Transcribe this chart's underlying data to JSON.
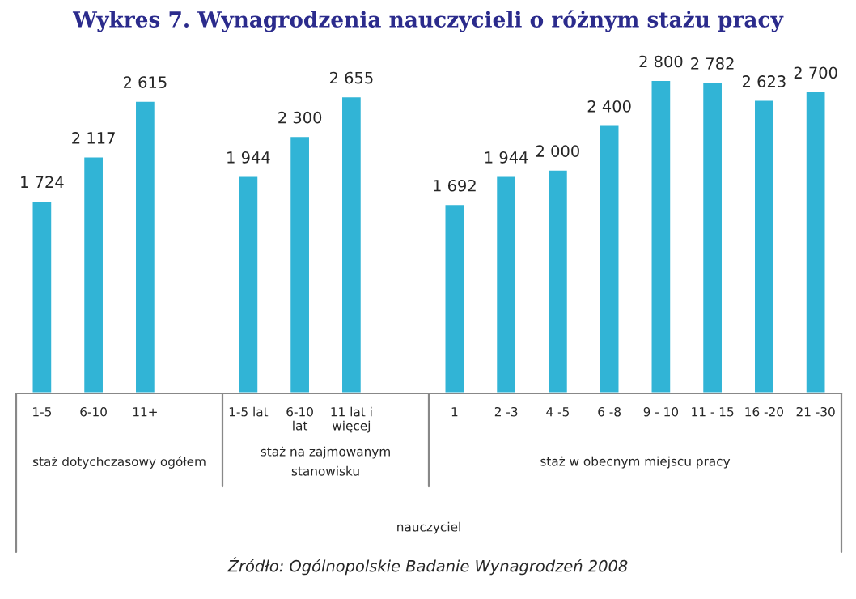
{
  "chart_data": {
    "type": "bar",
    "title": "Wykres 7. Wynagrodzenia nauczycieli o różnym stażu pracy",
    "categories": [
      "1-5",
      "6-10",
      "11+",
      null,
      "1-5 lat",
      "6-10 lat",
      "11 lat i więcej",
      null,
      "1",
      "2 -3",
      "4 -5",
      "6 -8",
      "9 - 10",
      "11 - 15",
      "16 -20",
      "21 -30"
    ],
    "values": [
      1724,
      2117,
      2615,
      null,
      1944,
      2300,
      2655,
      null,
      1692,
      1944,
      2000,
      2400,
      2800,
      2782,
      2623,
      2700
    ],
    "value_labels": [
      "1 724",
      "2 117",
      "2 615",
      null,
      "1 944",
      "2 300",
      "2 655",
      null,
      "1 692",
      "1 944",
      "2 000",
      "2 400",
      "2 800",
      "2 782",
      "2 623",
      "2 700"
    ],
    "color": "#31b4d6",
    "annotations": [
      "staż dotychczasowy ogółem",
      "staż na zajmowanym stanowisku",
      "staż w obecnym miejscu pracy",
      "nauczyciel",
      "Źródło: Ogólnopolskie Badanie Wynagrodzeń 2008"
    ],
    "grid": false,
    "legend": false
  }
}
